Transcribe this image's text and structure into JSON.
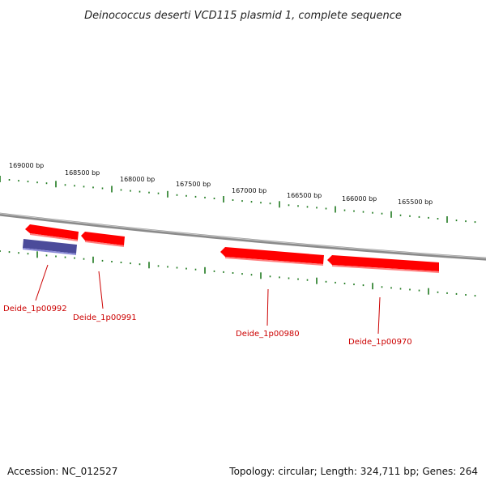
{
  "title": "Deinococcus deserti VCD115 plasmid 1, complete sequence",
  "accession": "Accession: NC_012527",
  "summary": "Topology: circular; Length: 324,711 bp; Genes: 264",
  "bp_labels": [
    "169000 bp",
    "168500 bp",
    "168000 bp",
    "167500 bp",
    "167000 bp",
    "166500 bp",
    "166000 bp",
    "165500 bp"
  ],
  "genes": [
    {
      "label": "Deide_1p00992",
      "strand": "minus",
      "color": "#4b4b9a"
    },
    {
      "label": "Deide_1p00991",
      "strand": "plus",
      "color": "#ff0000"
    },
    {
      "label": "Deide_1p00980",
      "strand": "plus",
      "color": "#ff0000"
    },
    {
      "label": "Deide_1p00970",
      "strand": "plus",
      "color": "#ff0000"
    }
  ],
  "colors": {
    "backbone": "#8a8a8a",
    "ticks": "#1f7a1f",
    "gene_plus": "#ff0000",
    "gene_minus": "#4b4b9a",
    "gene_label": "#cc0000",
    "leader": "#cc0000"
  }
}
